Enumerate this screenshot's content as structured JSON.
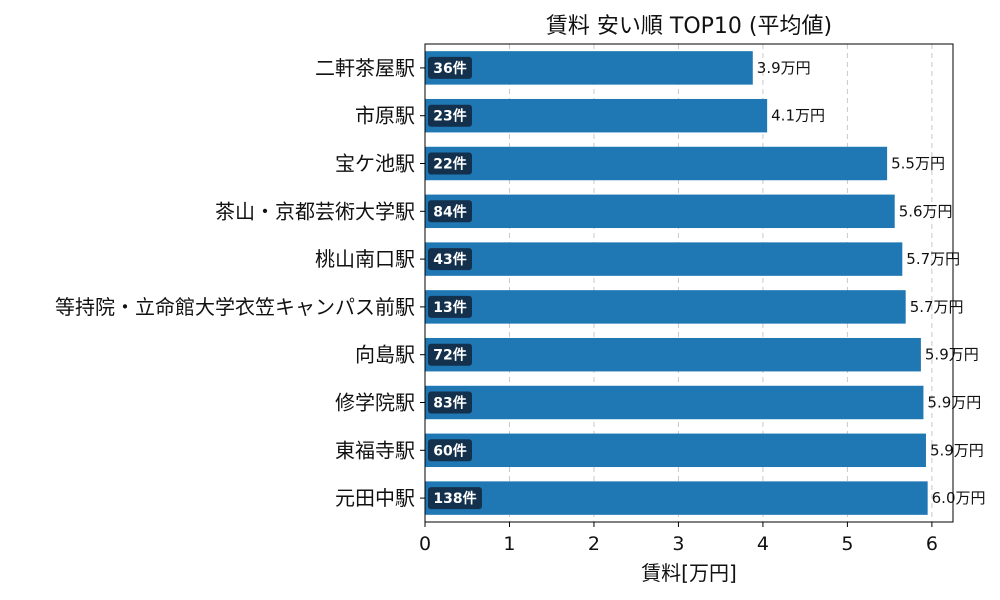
{
  "chart_data": {
    "type": "bar",
    "orientation": "horizontal",
    "title": "賃料 安い順 TOP10 (平均値)",
    "xlabel": "賃料[万円]",
    "ylabel": "",
    "xlim": [
      0,
      6.25
    ],
    "xticks": [
      0,
      1,
      2,
      3,
      4,
      5,
      6
    ],
    "grid": "x-dashed",
    "categories": [
      "二軒茶屋駅",
      "市原駅",
      "宝ケ池駅",
      "茶山・京都芸術大学駅",
      "桃山南口駅",
      "等持院・立命館大学衣笠キャンパス前駅",
      "向島駅",
      "修学院駅",
      "東福寺駅",
      "元田中駅"
    ],
    "values": [
      3.88,
      4.05,
      5.47,
      5.56,
      5.65,
      5.69,
      5.87,
      5.9,
      5.93,
      5.95
    ],
    "value_labels": [
      "3.9万円",
      "4.1万円",
      "5.5万円",
      "5.6万円",
      "5.7万円",
      "5.7万円",
      "5.9万円",
      "5.9万円",
      "5.9万円",
      "6.0万円"
    ],
    "counts": [
      "36件",
      "23件",
      "22件",
      "84件",
      "43件",
      "13件",
      "72件",
      "83件",
      "60件",
      "138件"
    ],
    "bar_color": "#1f77b4",
    "count_box_color": "#13314d"
  }
}
